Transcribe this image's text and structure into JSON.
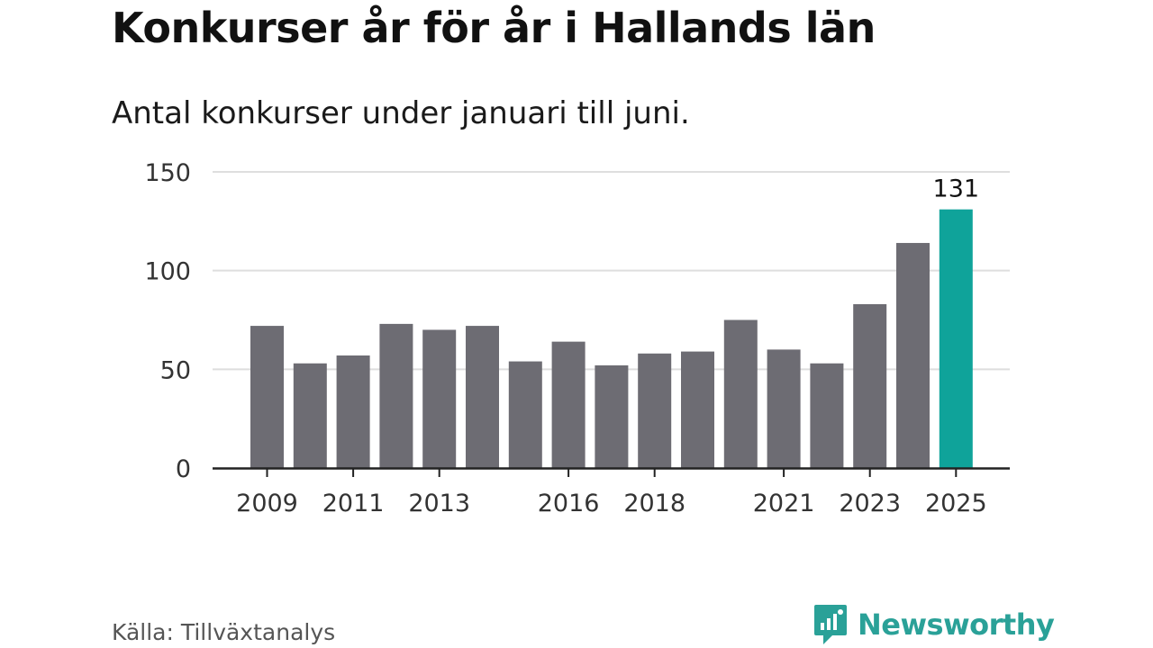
{
  "chart_data": {
    "type": "bar",
    "title": "Konkurser år för år i Hallands län",
    "subtitle": "Antal konkurser under januari till juni.",
    "categories": [
      "2009",
      "2010",
      "2011",
      "2012",
      "2013",
      "2014",
      "2015",
      "2016",
      "2017",
      "2018",
      "2019",
      "2020",
      "2021",
      "2022",
      "2023",
      "2024",
      "2025"
    ],
    "values": [
      72,
      53,
      57,
      73,
      70,
      72,
      54,
      64,
      52,
      58,
      59,
      75,
      60,
      53,
      83,
      114,
      131
    ],
    "x_tick_labels": [
      "2009",
      "2011",
      "2013",
      "2016",
      "2018",
      "2021",
      "2023",
      "2025"
    ],
    "y_ticks": [
      0,
      50,
      100,
      150
    ],
    "ylim": [
      0,
      150
    ],
    "grid": true,
    "highlight": {
      "category": "2025",
      "label": "131"
    },
    "colors": {
      "bar": "#6d6c73",
      "highlight": "#0fa39a",
      "grid": "#dedede",
      "axis": "#222222"
    }
  },
  "source": "Källa: Tillväxtanalys",
  "brand": {
    "name": "Newsworthy",
    "icon": "newsworthy-logo-icon",
    "color": "#2aa198"
  }
}
